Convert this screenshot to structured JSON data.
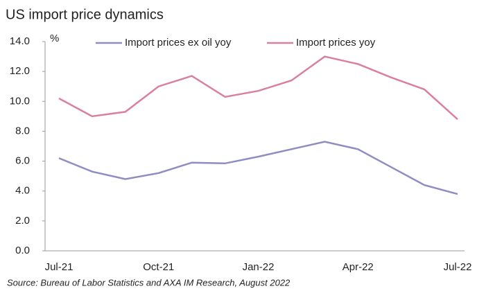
{
  "chart_data": {
    "type": "line",
    "title": "US import price dynamics",
    "y_unit": "%",
    "source": "Source: Bureau of Labor Statistics and AXA IM Research, August 2022",
    "categories": [
      "Jul-21",
      null,
      null,
      "Oct-21",
      null,
      null,
      "Jan-22",
      null,
      null,
      "Apr-22",
      null,
      null,
      "Jul-22"
    ],
    "series": [
      {
        "name": "Import prices ex oil yoy",
        "color": "#8e8cc2",
        "values": [
          6.2,
          5.3,
          4.8,
          5.2,
          5.9,
          5.85,
          6.3,
          6.8,
          7.3,
          6.8,
          5.6,
          4.4,
          3.8
        ]
      },
      {
        "name": "Import prices yoy",
        "color": "#d9809e",
        "values": [
          10.2,
          9.0,
          9.3,
          11.0,
          11.7,
          10.3,
          10.7,
          11.4,
          13.0,
          12.5,
          11.6,
          10.8,
          8.8
        ]
      }
    ],
    "ylim": [
      0,
      14
    ],
    "yticks": [
      {
        "value": 0,
        "label": "0.0"
      },
      {
        "value": 2,
        "label": "2.0"
      },
      {
        "value": 4,
        "label": "4.0"
      },
      {
        "value": 6,
        "label": "6.0"
      },
      {
        "value": 8,
        "label": "8.0"
      },
      {
        "value": 10,
        "label": "10.0"
      },
      {
        "value": 12,
        "label": "12.0"
      },
      {
        "value": 14,
        "label": "14.0"
      }
    ],
    "grid": false
  }
}
